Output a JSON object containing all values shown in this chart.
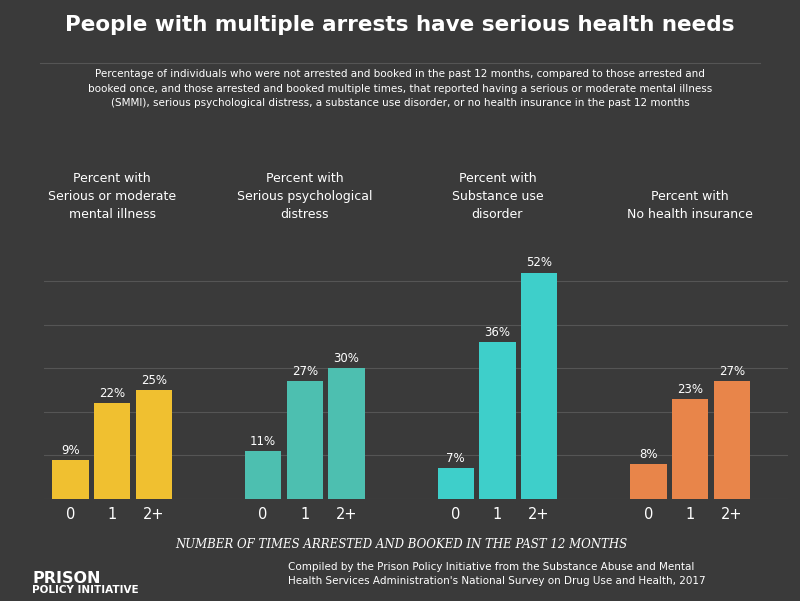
{
  "title": "People with multiple arrests have serious health needs",
  "subtitle": "Percentage of individuals who were not arrested and booked in the past 12 months, compared to those arrested and\nbooked once, and those arrested and booked multiple times, that reported having a serious or moderate mental illness\n(SMMI), serious psychological distress, a substance use disorder, or no health insurance in the past 12 months",
  "background_color": "#3a3a3a",
  "text_color": "#ffffff",
  "groups": [
    {
      "label": "Percent with\nSerious or moderate\nmental illness",
      "values": [
        9,
        22,
        25
      ],
      "color": "#f0c030"
    },
    {
      "label": "Percent with\nSerious psychological\ndistress",
      "values": [
        11,
        27,
        30
      ],
      "color": "#4dbfb0"
    },
    {
      "label": "Percent with\nSubstance use\ndisorder",
      "values": [
        7,
        36,
        52
      ],
      "color": "#3ecfca"
    },
    {
      "label": "Percent with\nNo health insurance",
      "values": [
        8,
        23,
        27
      ],
      "color": "#e8854a"
    }
  ],
  "x_labels": [
    "0",
    "1",
    "2+"
  ],
  "xlabel": "Number of times arrested and booked in the past 12 months",
  "ylim": [
    0,
    58
  ],
  "grid_color": "#555555",
  "grid_yticks": [
    10,
    20,
    30,
    40,
    50
  ],
  "footer_left_line1": "PRISON",
  "footer_left_line2": "POLICY INITIATIVE",
  "footer_right": "Compiled by the Prison Policy Initiative from the Substance Abuse and Mental\nHealth Services Administration's National Survey on Drug Use and Health, 2017"
}
